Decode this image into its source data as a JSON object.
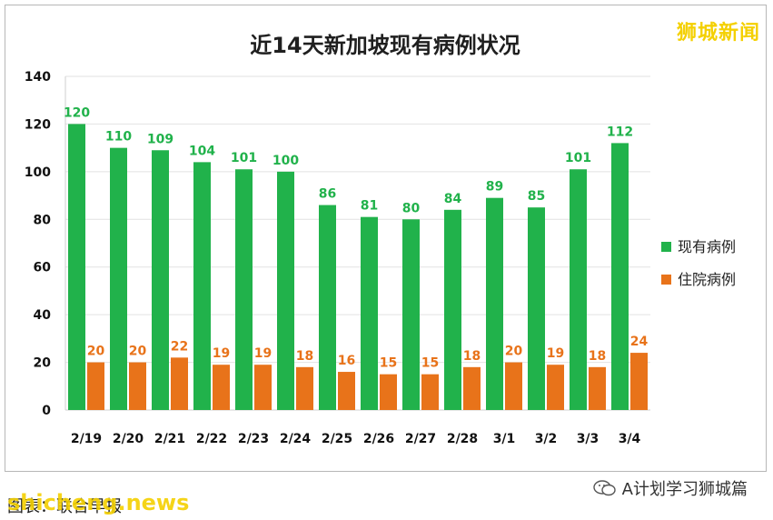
{
  "watermark": "狮城新闻",
  "footer": {
    "source": "图表：联合早报",
    "site_watermark": "shicheng.news",
    "account": "A计划学习狮城篇"
  },
  "colors": {
    "series1": "#21b24b",
    "series2": "#e8731a",
    "title": "#1f1f1f",
    "watermark": "#f4d000"
  },
  "chart_data": {
    "type": "bar",
    "title": "近14天新加坡现有病例状况",
    "xlabel": "",
    "ylabel": "",
    "categories": [
      "2/19",
      "2/20",
      "2/21",
      "2/22",
      "2/23",
      "2/24",
      "2/25",
      "2/26",
      "2/27",
      "2/28",
      "3/1",
      "3/2",
      "3/3",
      "3/4"
    ],
    "series": [
      {
        "name": "现有病例",
        "color": "#21b24b",
        "values": [
          120,
          110,
          109,
          104,
          101,
          100,
          86,
          81,
          80,
          84,
          89,
          85,
          101,
          112
        ]
      },
      {
        "name": "住院病例",
        "color": "#e8731a",
        "values": [
          20,
          20,
          22,
          19,
          19,
          18,
          16,
          15,
          15,
          18,
          20,
          19,
          18,
          24
        ]
      }
    ],
    "ylim": [
      0,
      140
    ],
    "yticks": [
      0,
      20,
      40,
      60,
      80,
      100,
      120,
      140
    ],
    "grid": true,
    "legend": "right"
  }
}
